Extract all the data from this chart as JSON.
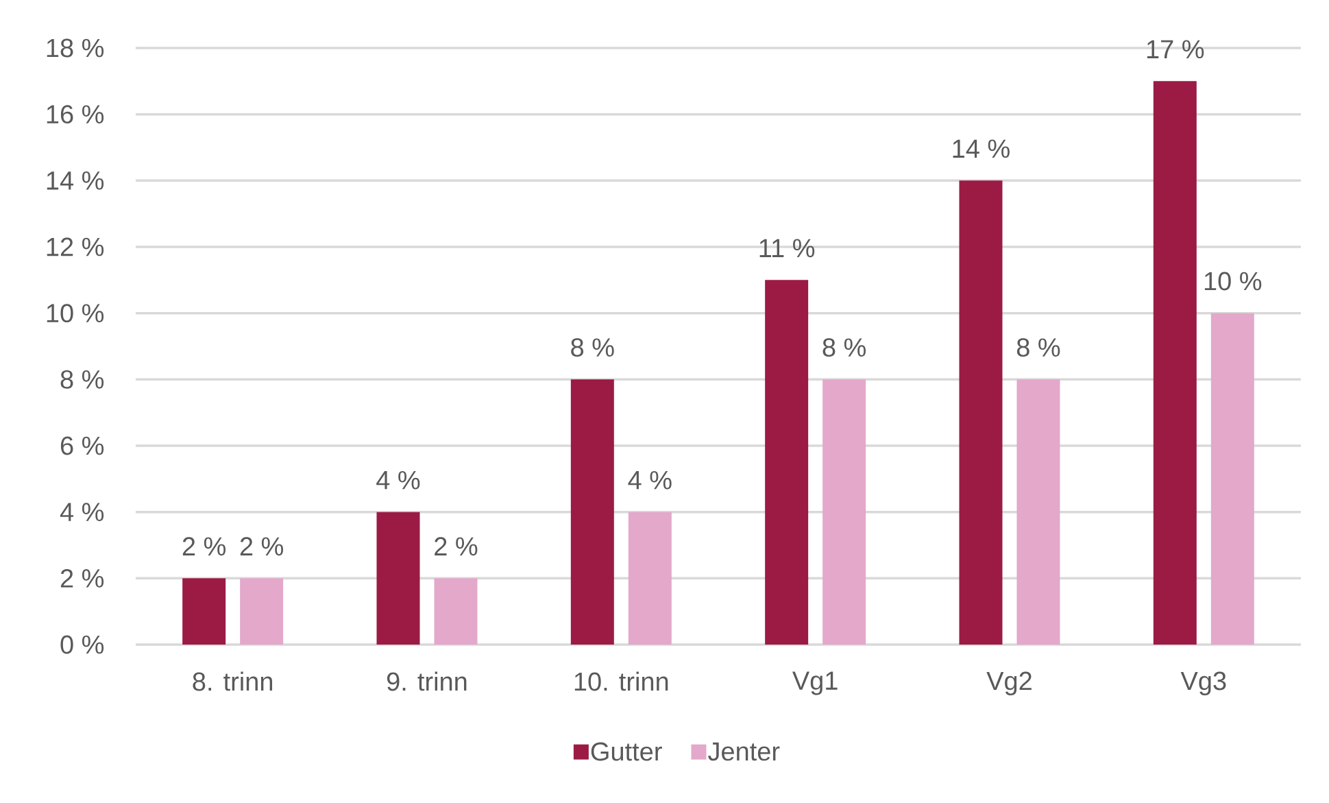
{
  "chart_data": {
    "type": "bar",
    "categories": [
      "8. trinn",
      "9. trinn",
      "10. trinn",
      "Vg1",
      "Vg2",
      "Vg3"
    ],
    "series": [
      {
        "name": "Gutter",
        "color": "#9b1b45",
        "values": [
          2,
          4,
          8,
          11,
          14,
          17
        ],
        "value_labels": [
          "2 %",
          "4 %",
          "8 %",
          "11 %",
          "14 %",
          "17 %"
        ]
      },
      {
        "name": "Jenter",
        "color": "#e3a8ca",
        "values": [
          2,
          2,
          4,
          8,
          8,
          10
        ],
        "value_labels": [
          "2 %",
          "2 %",
          "4 %",
          "8 %",
          "8 %",
          "10 %"
        ]
      }
    ],
    "ylim": [
      0,
      18
    ],
    "yticks": [
      {
        "value": 0,
        "label": "0 %"
      },
      {
        "value": 2,
        "label": "2 %"
      },
      {
        "value": 4,
        "label": "4 %"
      },
      {
        "value": 6,
        "label": "6 %"
      },
      {
        "value": 8,
        "label": "8 %"
      },
      {
        "value": 10,
        "label": "10 %"
      },
      {
        "value": 12,
        "label": "12 %"
      },
      {
        "value": 14,
        "label": "14 %"
      },
      {
        "value": 16,
        "label": "16 %"
      },
      {
        "value": 18,
        "label": "18 %"
      }
    ],
    "grid": "y",
    "legend": "bottom"
  }
}
